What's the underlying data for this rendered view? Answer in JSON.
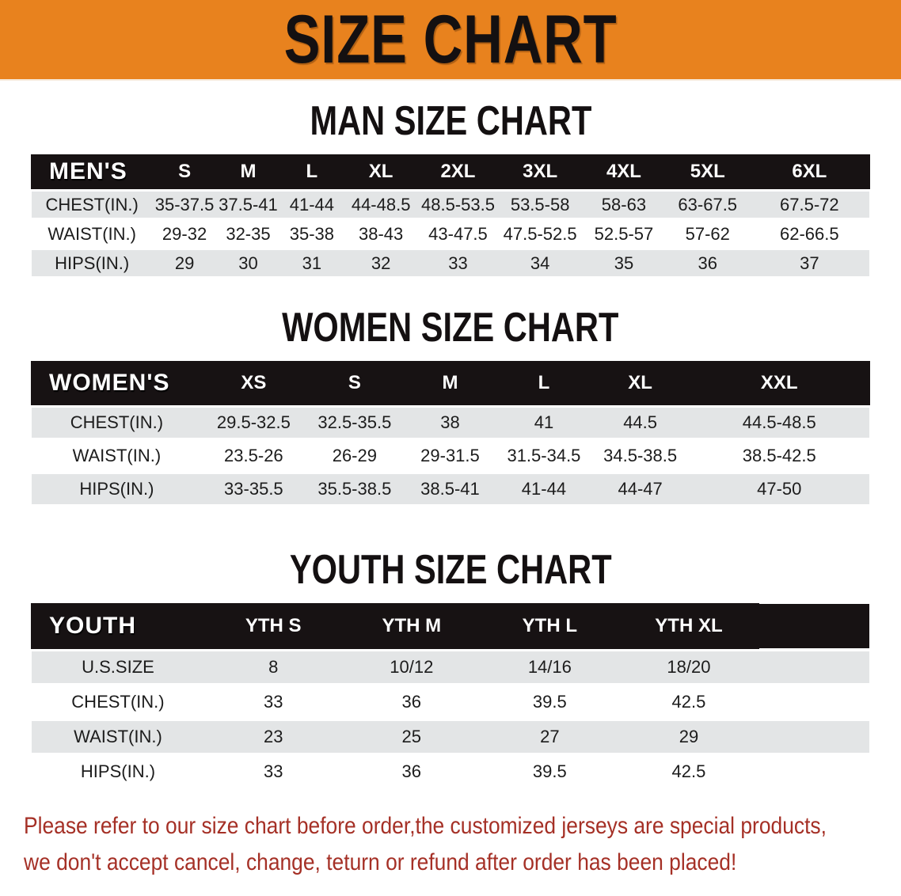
{
  "banner": {
    "title": "SIZE CHART",
    "bg_color": "#E8821E",
    "text_color": "#141011"
  },
  "sections": [
    {
      "title": "MAN SIZE CHART",
      "table": {
        "group_label": "MEN'S",
        "size_headers": [
          "S",
          "M",
          "L",
          "XL",
          "2XL",
          "3XL",
          "4XL",
          "5XL",
          "6XL"
        ],
        "rows": [
          {
            "label": "CHEST(IN.)",
            "values": [
              "35-37.5",
              "37.5-41",
              "41-44",
              "44-48.5",
              "48.5-53.5",
              "53.5-58",
              "58-63",
              "63-67.5",
              "67.5-72"
            ]
          },
          {
            "label": "WAIST(IN.)",
            "values": [
              "29-32",
              "32-35",
              "35-38",
              "38-43",
              "43-47.5",
              "47.5-52.5",
              "52.5-57",
              "57-62",
              "62-66.5"
            ]
          },
          {
            "label": "HIPS(IN.)",
            "values": [
              "29",
              "30",
              "31",
              "32",
              "33",
              "34",
              "35",
              "36",
              "37"
            ]
          }
        ]
      }
    },
    {
      "title": "WOMEN SIZE CHART",
      "table": {
        "group_label": "WOMEN'S",
        "size_headers": [
          "XS",
          "S",
          "M",
          "L",
          "XL",
          "XXL"
        ],
        "rows": [
          {
            "label": "CHEST(IN.)",
            "values": [
              "29.5-32.5",
              "32.5-35.5",
              "38",
              "41",
              "44.5",
              "44.5-48.5"
            ]
          },
          {
            "label": "WAIST(IN.)",
            "values": [
              "23.5-26",
              "26-29",
              "29-31.5",
              "31.5-34.5",
              "34.5-38.5",
              "38.5-42.5"
            ]
          },
          {
            "label": "HIPS(IN.)",
            "values": [
              "33-35.5",
              "35.5-38.5",
              "38.5-41",
              "41-44",
              "44-47",
              "47-50"
            ]
          }
        ]
      }
    },
    {
      "title": "YOUTH SIZE CHART",
      "table": {
        "group_label": "YOUTH",
        "size_headers": [
          "YTH S",
          "YTH M",
          "YTH L",
          "YTH XL"
        ],
        "rows": [
          {
            "label": "U.S.SIZE",
            "values": [
              "8",
              "10/12",
              "14/16",
              "18/20"
            ]
          },
          {
            "label": "CHEST(IN.)",
            "values": [
              "33",
              "36",
              "39.5",
              "42.5"
            ]
          },
          {
            "label": "WAIST(IN.)",
            "values": [
              "23",
              "25",
              "27",
              "29"
            ]
          },
          {
            "label": "HIPS(IN.)",
            "values": [
              "33",
              "36",
              "39.5",
              "42.5"
            ]
          }
        ]
      }
    }
  ],
  "disclaimer": {
    "lines": [
      "Please refer to our size chart before order,the customized jerseys are special products,",
      "we don't accept cancel, change, teturn or refund after order has been placed!"
    ],
    "color": "#A53026"
  },
  "colors": {
    "banner_orange": "#E8821E",
    "table_header_black": "#171213",
    "row_gray": "#E3E5E6",
    "row_white": "#FFFFFF",
    "disclaimer_red": "#A53026"
  }
}
